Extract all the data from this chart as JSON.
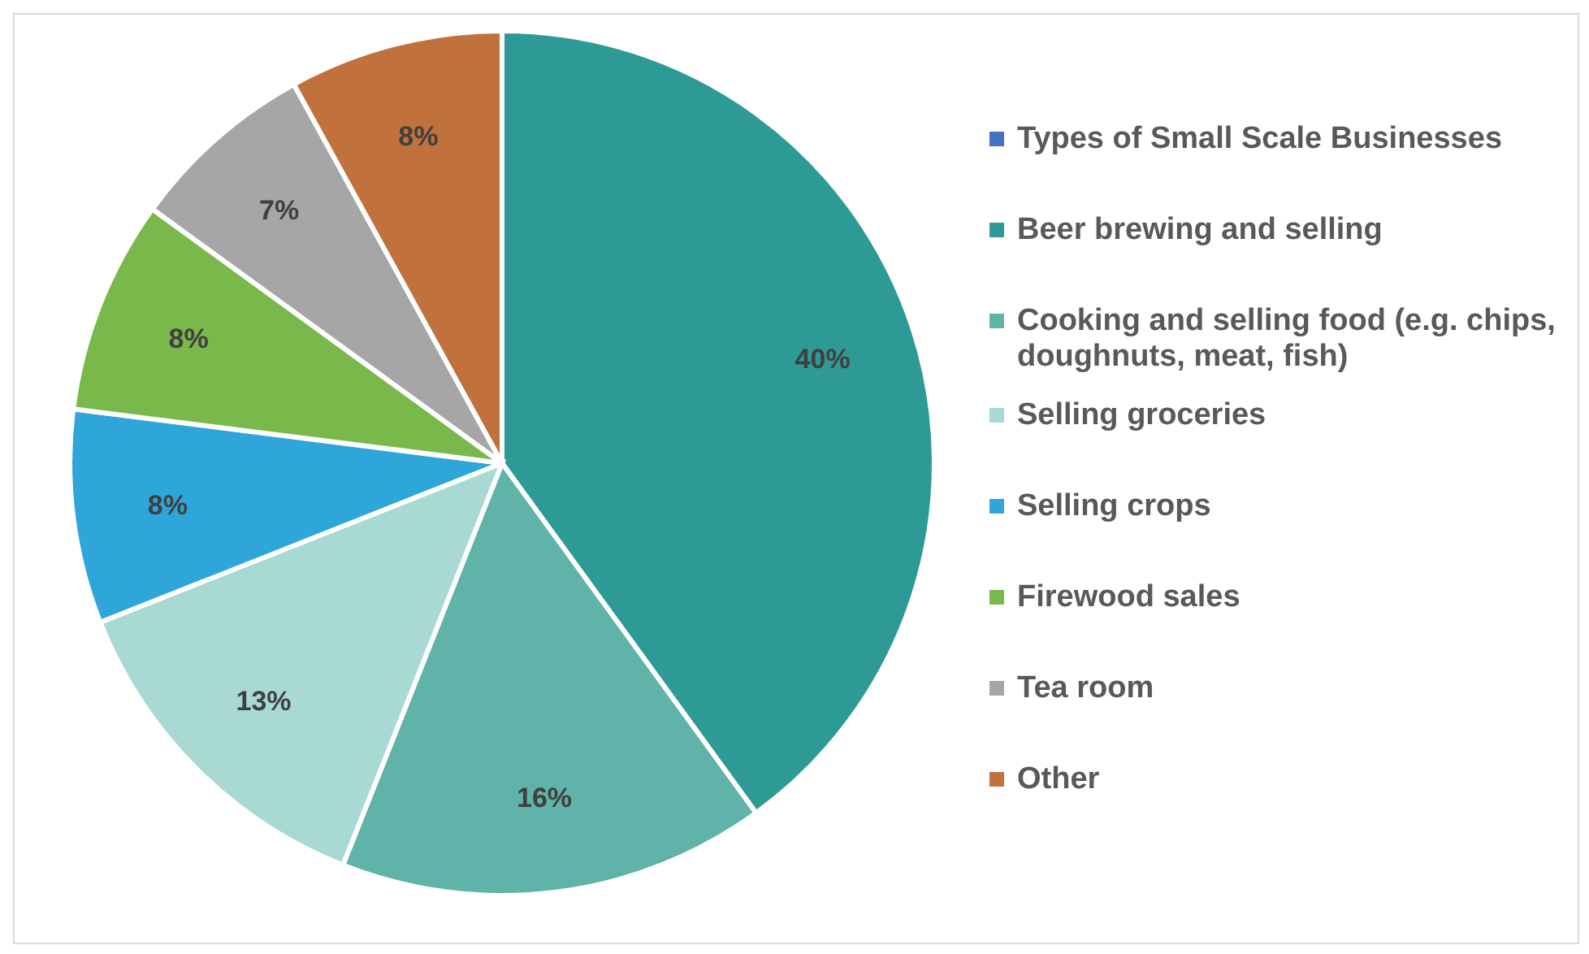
{
  "chart_data": {
    "type": "pie",
    "categories": [
      "Types of Small Scale Businesses",
      "Beer brewing and selling",
      "Cooking and selling food (e.g. chips, doughnuts, meat, fish)",
      "Selling groceries",
      "Selling crops",
      "Firewood sales",
      "Tea room",
      "Other"
    ],
    "values": [
      0,
      40,
      16,
      13,
      8,
      8,
      7,
      8
    ],
    "colors": [
      "#4472c4",
      "#2e9a96",
      "#5fb3a8",
      "#a9d9d5",
      "#2fa6d9",
      "#79b84a",
      "#a6a6a6",
      "#c0713c"
    ],
    "value_labels": [
      null,
      "40%",
      "16%",
      "13%",
      "8%",
      "8%",
      "7%",
      "8%"
    ],
    "legend": "right"
  }
}
